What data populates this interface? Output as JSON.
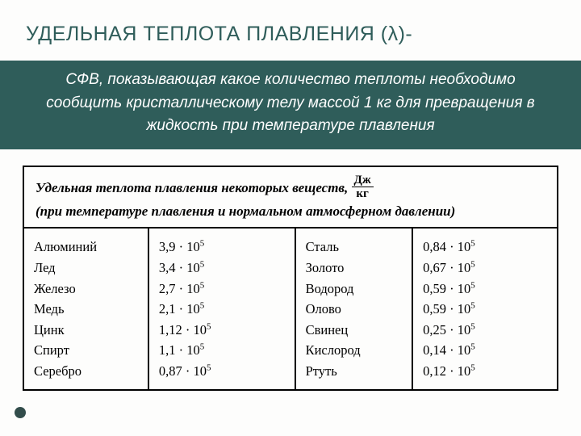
{
  "title": "УДЕЛЬНАЯ ТЕПЛОТА ПЛАВЛЕНИЯ (λ)-",
  "definition": "СФВ, показывающая   какое количество теплоты необходимо сообщить кристаллическому  телу  массой 1 кг для превращения в жидкость  при температуре плавления",
  "caption_a": "Удельная теплота плавления некоторых веществ,",
  "caption_b": "(при температуре плавления и нормальном атмосферном давлении)",
  "unit_n": "Дж",
  "unit_d": "кг",
  "left": [
    {
      "s": "Алюминий",
      "m": "3,9",
      "e": "5"
    },
    {
      "s": "Лед",
      "m": "3,4",
      "e": "5"
    },
    {
      "s": "Железо",
      "m": "2,7",
      "e": "5"
    },
    {
      "s": "Медь",
      "m": "2,1",
      "e": "5"
    },
    {
      "s": "Цинк",
      "m": "1,12",
      "e": "5"
    },
    {
      "s": "Спирт",
      "m": "1,1",
      "e": "5"
    },
    {
      "s": "Серебро",
      "m": "0,87",
      "e": "5"
    }
  ],
  "right": [
    {
      "s": "Сталь",
      "m": "0,84",
      "e": "5"
    },
    {
      "s": "Золото",
      "m": "0,67",
      "e": "5"
    },
    {
      "s": "Водород",
      "m": "0,59",
      "e": "5"
    },
    {
      "s": "Олово",
      "m": "0,59",
      "e": "5"
    },
    {
      "s": "Свинец",
      "m": "0,25",
      "e": "5"
    },
    {
      "s": "Кислород",
      "m": "0,14",
      "e": "5"
    },
    {
      "s": "Ртуть",
      "m": "0,12",
      "e": "5"
    }
  ],
  "colors": {
    "accent": "#2f5d5a",
    "bg": "#fdfdfc",
    "border": "#000000"
  }
}
